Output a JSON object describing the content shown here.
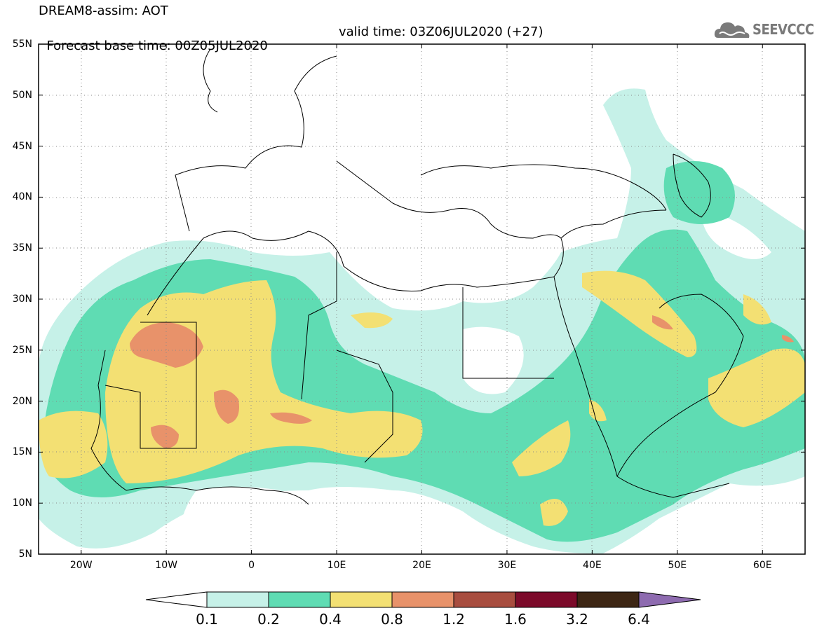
{
  "title": {
    "line1": "DREAM8-assim: AOT",
    "base_time": "Forecast base time: 00Z05JUL2020",
    "valid_time": "valid time: 03Z06JUL2020 (+27)"
  },
  "logo": {
    "text": "SEEVCCC",
    "icon": "cloud-icon"
  },
  "map": {
    "lon_range": [
      -25,
      65
    ],
    "lat_range": [
      5,
      55
    ],
    "lat_ticks": [
      {
        "value": 55,
        "label": "55N"
      },
      {
        "value": 50,
        "label": "50N"
      },
      {
        "value": 45,
        "label": "45N"
      },
      {
        "value": 40,
        "label": "40N"
      },
      {
        "value": 35,
        "label": "35N"
      },
      {
        "value": 30,
        "label": "30N"
      },
      {
        "value": 25,
        "label": "25N"
      },
      {
        "value": 20,
        "label": "20N"
      },
      {
        "value": 15,
        "label": "15N"
      },
      {
        "value": 10,
        "label": "10N"
      },
      {
        "value": 5,
        "label": "5N"
      }
    ],
    "lon_ticks": [
      {
        "value": -20,
        "label": "20W"
      },
      {
        "value": -10,
        "label": "10W"
      },
      {
        "value": 0,
        "label": "0"
      },
      {
        "value": 10,
        "label": "10E"
      },
      {
        "value": 20,
        "label": "20E"
      },
      {
        "value": 30,
        "label": "30E"
      },
      {
        "value": 40,
        "label": "40E"
      },
      {
        "value": 50,
        "label": "50E"
      },
      {
        "value": 60,
        "label": "60E"
      }
    ]
  },
  "colorbar": {
    "levels": [
      "0.1",
      "0.2",
      "0.4",
      "0.8",
      "1.2",
      "1.6",
      "3.2",
      "6.4"
    ],
    "colors": [
      "#ffffff",
      "#c6f1e8",
      "#5fdcb3",
      "#f3e073",
      "#e8926a",
      "#a84d3f",
      "#7c0a2a",
      "#3d2614",
      "#8e6bb0"
    ]
  }
}
